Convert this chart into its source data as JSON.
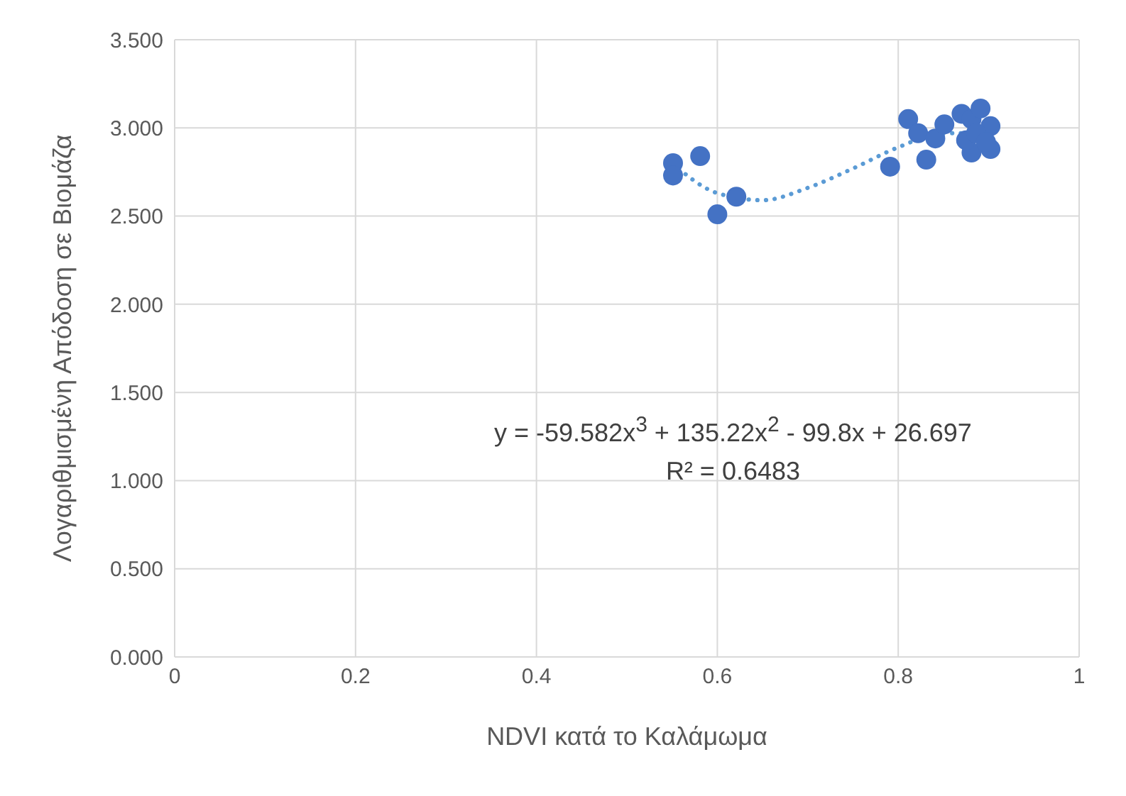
{
  "chart_data": {
    "type": "scatter",
    "xlabel": "NDVI κατά το Καλάμωμα",
    "ylabel": "Λογαριθμισμένη Απόδοση σε Βιομάζα",
    "xlim": [
      0,
      1
    ],
    "xticks": [
      0,
      0.2,
      0.4,
      0.6,
      0.8,
      1
    ],
    "ylim": [
      0,
      3.5
    ],
    "yticks": [
      {
        "value": 0,
        "label": "0.000"
      },
      {
        "value": 0.5,
        "label": "0.500"
      },
      {
        "value": 1,
        "label": "1.000"
      },
      {
        "value": 1.5,
        "label": "1.500"
      },
      {
        "value": 2,
        "label": "2.000"
      },
      {
        "value": 2.5,
        "label": "2.500"
      },
      {
        "value": 3,
        "label": "3.000"
      },
      {
        "value": 3.5,
        "label": "3.500"
      }
    ],
    "grid": true,
    "legend": false,
    "marker": "circle",
    "series": [
      {
        "color": "#4472c4",
        "x": [
          0.551,
          0.551,
          0.581,
          0.6,
          0.621,
          0.791,
          0.811,
          0.822,
          0.831,
          0.841,
          0.851,
          0.87,
          0.881,
          0.891,
          0.902,
          0.902,
          0.881,
          0.875,
          0.886,
          0.897
        ],
        "values": [
          2.8,
          2.73,
          2.84,
          2.51,
          2.61,
          2.78,
          3.05,
          2.97,
          2.82,
          2.94,
          3.02,
          3.08,
          3.05,
          3.11,
          3.01,
          2.88,
          2.86,
          2.93,
          2.97,
          2.92
        ]
      },
      {
        "type": "line",
        "color": "#5b9bd5",
        "line_style": "dotted",
        "marker": "none",
        "x": [
          0.55,
          0.6,
          0.65,
          0.7,
          0.75,
          0.8,
          0.85,
          0.9
        ],
        "values": [
          2.8,
          2.63,
          2.59,
          2.66,
          2.77,
          2.89,
          2.97,
          2.97
        ]
      }
    ],
    "annotations": [
      "y = -59.582x$^{3}$ + 135.22x$^{2}$ - 99.8x + 26.697",
      "R² = 0.6483"
    ]
  }
}
